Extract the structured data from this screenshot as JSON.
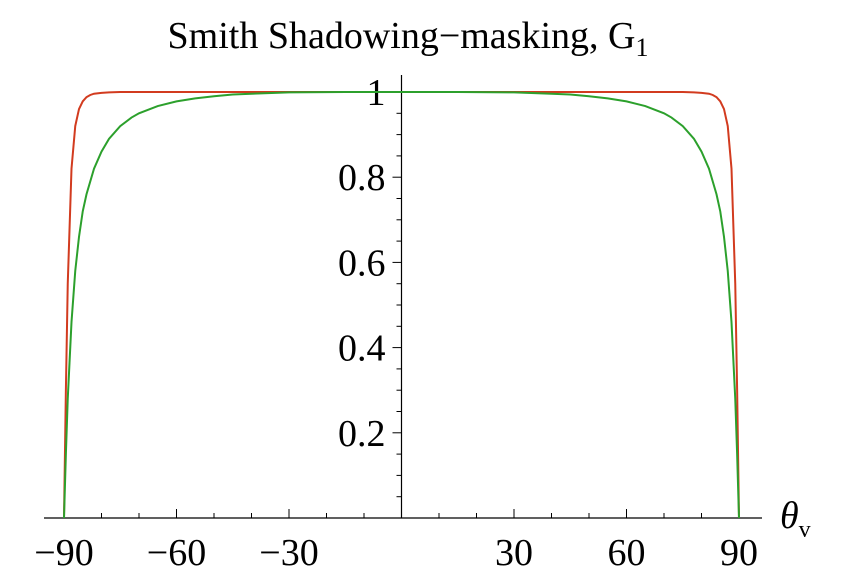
{
  "chart_data": {
    "type": "line",
    "title_main": "Smith Shadowing−masking, G",
    "title_sub": "1",
    "xlabel_main": "θ",
    "xlabel_sub": "v",
    "ylabel": "",
    "xlim": [
      -97,
      97
    ],
    "ylim": [
      0,
      1.04
    ],
    "x_ticks": [
      -90,
      -60,
      -30,
      30,
      60,
      90
    ],
    "x_tick_labels": [
      "−90",
      "−60",
      "−30",
      "30",
      "60",
      "90"
    ],
    "y_ticks": [
      0.2,
      0.4,
      0.6,
      0.8,
      1
    ],
    "y_tick_labels": [
      "0.2",
      "0.4",
      "0.6",
      "0.8",
      "1"
    ],
    "x_minor_step": 10,
    "y_minor_step": 0.05,
    "grid": false,
    "legend": "none",
    "series": [
      {
        "color": "#d23b1f",
        "x": [
          -90,
          -89.5,
          -89,
          -88,
          -87,
          -86,
          -85,
          -84,
          -83,
          -82,
          -80,
          -78,
          -75,
          -70,
          -60,
          -45,
          -30,
          -15,
          0,
          15,
          30,
          45,
          60,
          70,
          75,
          78,
          80,
          82,
          83,
          84,
          85,
          86,
          87,
          88,
          89,
          89.5,
          90
        ],
        "y": [
          0,
          0.3,
          0.55,
          0.82,
          0.92,
          0.96,
          0.978,
          0.988,
          0.993,
          0.996,
          0.998,
          0.999,
          1,
          1,
          1,
          1,
          1,
          1,
          1,
          1,
          1,
          1,
          1,
          1,
          1,
          0.999,
          0.998,
          0.996,
          0.993,
          0.988,
          0.978,
          0.96,
          0.92,
          0.82,
          0.55,
          0.3,
          0
        ]
      },
      {
        "color": "#2ca02c",
        "x": [
          -90,
          -89.5,
          -89,
          -88,
          -87,
          -86,
          -85,
          -84,
          -82,
          -80,
          -78,
          -75,
          -72,
          -70,
          -65,
          -60,
          -55,
          -50,
          -45,
          -40,
          -30,
          -15,
          0,
          15,
          30,
          40,
          45,
          50,
          55,
          60,
          65,
          70,
          72,
          75,
          78,
          80,
          82,
          84,
          85,
          86,
          87,
          88,
          89,
          89.5,
          90
        ],
        "y": [
          0,
          0.15,
          0.28,
          0.46,
          0.58,
          0.66,
          0.72,
          0.76,
          0.82,
          0.86,
          0.89,
          0.92,
          0.94,
          0.95,
          0.967,
          0.978,
          0.985,
          0.99,
          0.994,
          0.996,
          0.999,
          1,
          1,
          1,
          0.999,
          0.996,
          0.994,
          0.99,
          0.985,
          0.978,
          0.967,
          0.95,
          0.94,
          0.92,
          0.89,
          0.86,
          0.82,
          0.76,
          0.72,
          0.66,
          0.58,
          0.46,
          0.28,
          0.15,
          0
        ]
      }
    ]
  }
}
